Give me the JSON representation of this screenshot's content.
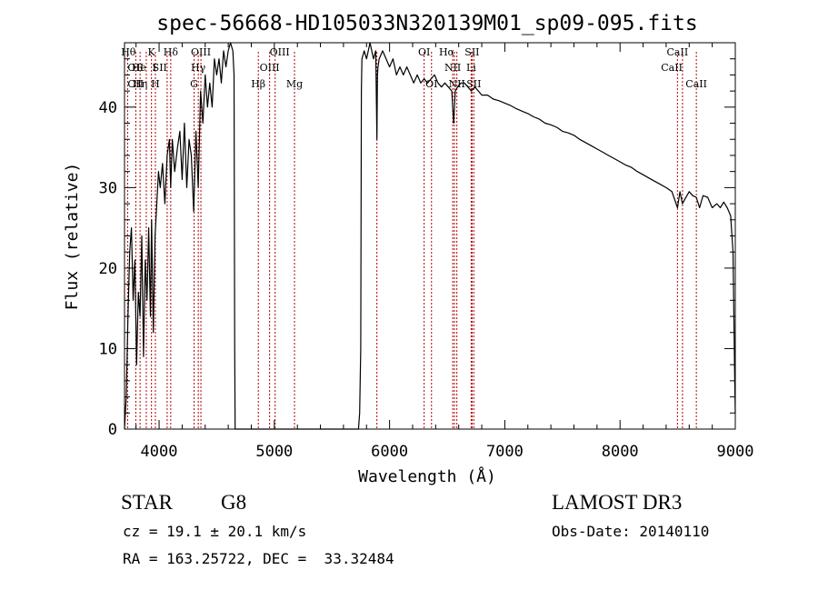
{
  "chart_data": {
    "type": "line",
    "title": "spec-56668-HD105033N320139M01_sp09-095.fits",
    "xlabel": "Wavelength (Å)",
    "ylabel": "Flux (relative)",
    "xlim": [
      3700,
      9000
    ],
    "ylim": [
      0,
      48
    ],
    "xticks": [
      4000,
      5000,
      6000,
      7000,
      8000,
      9000
    ],
    "xtick_labels": [
      "4000",
      "5000",
      "6000",
      "7000",
      "8000",
      "9000"
    ],
    "yticks": [
      0,
      10,
      20,
      30,
      40
    ],
    "ytick_labels": [
      "0",
      "10",
      "20",
      "30",
      "40"
    ],
    "grid": false,
    "series": [
      {
        "x": [
          3700,
          3715,
          3730,
          3745,
          3760,
          3775,
          3790,
          3805,
          3820,
          3835,
          3850,
          3865,
          3880,
          3895,
          3910,
          3925,
          3935,
          3950,
          3965,
          3980,
          3995,
          4010,
          4030,
          4050,
          4070,
          4090,
          4101,
          4115,
          4135,
          4160,
          4180,
          4200,
          4220,
          4240,
          4260,
          4280,
          4300,
          4320,
          4340,
          4360,
          4380,
          4400,
          4420,
          4440,
          4460,
          4480,
          4500,
          4520,
          4540,
          4560,
          4580,
          4600,
          4620,
          4640,
          4650,
          4656,
          4660,
          4665,
          4675,
          5700,
          5730,
          5740,
          5750,
          5755,
          5760,
          5780,
          5800,
          5830,
          5860,
          5880,
          5890,
          5895,
          5900,
          5910,
          5940,
          5970,
          6000,
          6030,
          6060,
          6090,
          6120,
          6150,
          6180,
          6210,
          6240,
          6270,
          6300,
          6330,
          6360,
          6390,
          6420,
          6450,
          6480,
          6510,
          6540,
          6556,
          6563,
          6570,
          6590,
          6620,
          6650,
          6680,
          6710,
          6740,
          6770,
          6800,
          6850,
          6900,
          6950,
          7000,
          7050,
          7100,
          7150,
          7200,
          7250,
          7300,
          7350,
          7400,
          7450,
          7500,
          7550,
          7600,
          7650,
          7700,
          7750,
          7800,
          7850,
          7900,
          7950,
          8000,
          8050,
          8100,
          8150,
          8200,
          8250,
          8300,
          8350,
          8400,
          8450,
          8498,
          8520,
          8542,
          8560,
          8600,
          8630,
          8662,
          8690,
          8720,
          8760,
          8800,
          8840,
          8870,
          8900,
          8930,
          8960,
          8980,
          8995,
          9000
        ],
        "y": [
          0,
          4,
          14,
          22,
          25,
          16,
          21,
          8,
          17,
          14,
          24,
          9,
          21,
          16,
          25,
          14,
          26,
          12,
          24,
          28,
          32,
          30,
          33,
          28,
          34,
          36,
          30,
          36,
          32,
          35,
          37,
          31,
          38,
          30,
          36,
          34,
          27,
          37,
          30,
          42,
          38,
          44,
          40,
          43,
          40,
          46,
          44,
          46,
          43,
          47,
          45,
          47,
          48,
          47,
          44,
          11,
          0,
          0,
          0,
          0,
          0,
          2,
          10,
          42,
          46,
          47,
          46,
          48,
          46,
          47,
          36,
          44,
          45,
          46,
          47,
          46,
          45,
          46,
          44,
          45,
          44,
          45,
          44,
          43,
          44,
          43,
          43.5,
          43,
          43.5,
          44,
          43,
          42.5,
          43,
          42.5,
          42,
          38,
          40,
          42,
          42.5,
          43,
          43,
          42.5,
          42,
          42.5,
          42,
          41.5,
          41.5,
          41,
          40.8,
          40.5,
          40.2,
          39.8,
          39.5,
          39.2,
          38.8,
          38.5,
          38,
          37.8,
          37.5,
          37,
          36.8,
          36.5,
          36,
          35.6,
          35.2,
          34.8,
          34.4,
          34,
          33.6,
          33.2,
          32.8,
          32.5,
          32,
          31.6,
          31.2,
          30.8,
          30.4,
          30,
          29.5,
          27.5,
          29.5,
          28,
          28.5,
          29.5,
          29,
          28.8,
          27.5,
          29,
          28.8,
          27.5,
          28,
          27.5,
          28.2,
          27.5,
          26.5,
          22,
          6,
          2
        ]
      }
    ],
    "lines": [
      {
        "label": "Hθ",
        "x": 3798,
        "row": 0,
        "ha": "right"
      },
      {
        "label": "OII",
        "x": 3727,
        "row": 1,
        "ha": "left"
      },
      {
        "label": "OII",
        "x": 3727,
        "row": 2,
        "ha": "left"
      },
      {
        "label": "He",
        "x": 3889,
        "row": 1,
        "ha": "right"
      },
      {
        "label": "Hη",
        "x": 3835,
        "row": 2,
        "ha": "center"
      },
      {
        "label": "K",
        "x": 3934,
        "row": 0,
        "ha": "center"
      },
      {
        "label": "H",
        "x": 3968,
        "row": 2,
        "ha": "center"
      },
      {
        "label": "I",
        "x": 3960,
        "row": 1,
        "ha": "center"
      },
      {
        "label": "SII",
        "x": 4070,
        "row": 1,
        "ha": "right"
      },
      {
        "label": "Hδ",
        "x": 4101,
        "row": 0,
        "ha": "center"
      },
      {
        "label": "OIII",
        "x": 4363,
        "row": 0,
        "ha": "center"
      },
      {
        "label": "Hγ",
        "x": 4340,
        "row": 1,
        "ha": "center"
      },
      {
        "label": "G",
        "x": 4304,
        "row": 2,
        "ha": "center"
      },
      {
        "label": "OIII",
        "x": 4959,
        "row": 0,
        "ha": "left"
      },
      {
        "label": "OIII",
        "x": 4959,
        "row": 1,
        "ha": "center"
      },
      {
        "label": "Hβ",
        "x": 4861,
        "row": 2,
        "ha": "center"
      },
      {
        "label": "Mg",
        "x": 5175,
        "row": 2,
        "ha": "center"
      },
      {
        "label": "OI",
        "x": 6300,
        "row": 0,
        "ha": "center"
      },
      {
        "label": "OI",
        "x": 6364,
        "row": 2,
        "ha": "center"
      },
      {
        "label": "Hα",
        "x": 6563,
        "row": 0,
        "ha": "right"
      },
      {
        "label": "SII",
        "x": 6716,
        "row": 0,
        "ha": "center"
      },
      {
        "label": "NII",
        "x": 6548,
        "row": 1,
        "ha": "center"
      },
      {
        "label": "Li",
        "x": 6708,
        "row": 1,
        "ha": "center"
      },
      {
        "label": "NII",
        "x": 6584,
        "row": 2,
        "ha": "center"
      },
      {
        "label": "SII",
        "x": 6731,
        "row": 2,
        "ha": "center"
      },
      {
        "label": "CaII",
        "x": 8498,
        "row": 0,
        "ha": "center"
      },
      {
        "label": "CaII",
        "x": 8542,
        "row": 1,
        "ha": "right"
      },
      {
        "label": "CaII",
        "x": 8662,
        "row": 2,
        "ha": "center"
      }
    ],
    "marker_lines": [
      3727,
      3798,
      3835,
      3889,
      3934,
      3968,
      4070,
      4101,
      4304,
      4340,
      4363,
      4861,
      4959,
      5007,
      5175,
      5890,
      6300,
      6364,
      6548,
      6563,
      6584,
      6708,
      6716,
      6731,
      8498,
      8542,
      8662
    ],
    "colors": {
      "spectrum": "#000000",
      "marker": "#b00000",
      "axis": "#000000"
    }
  },
  "info": {
    "class": "STAR",
    "subclass": "G8",
    "survey": "LAMOST DR3",
    "cz": "cz = 19.1 ± 20.1 km/s",
    "obs_date": "Obs-Date: 20140110",
    "coords": "RA = 163.25722, DEC =  33.32484"
  }
}
